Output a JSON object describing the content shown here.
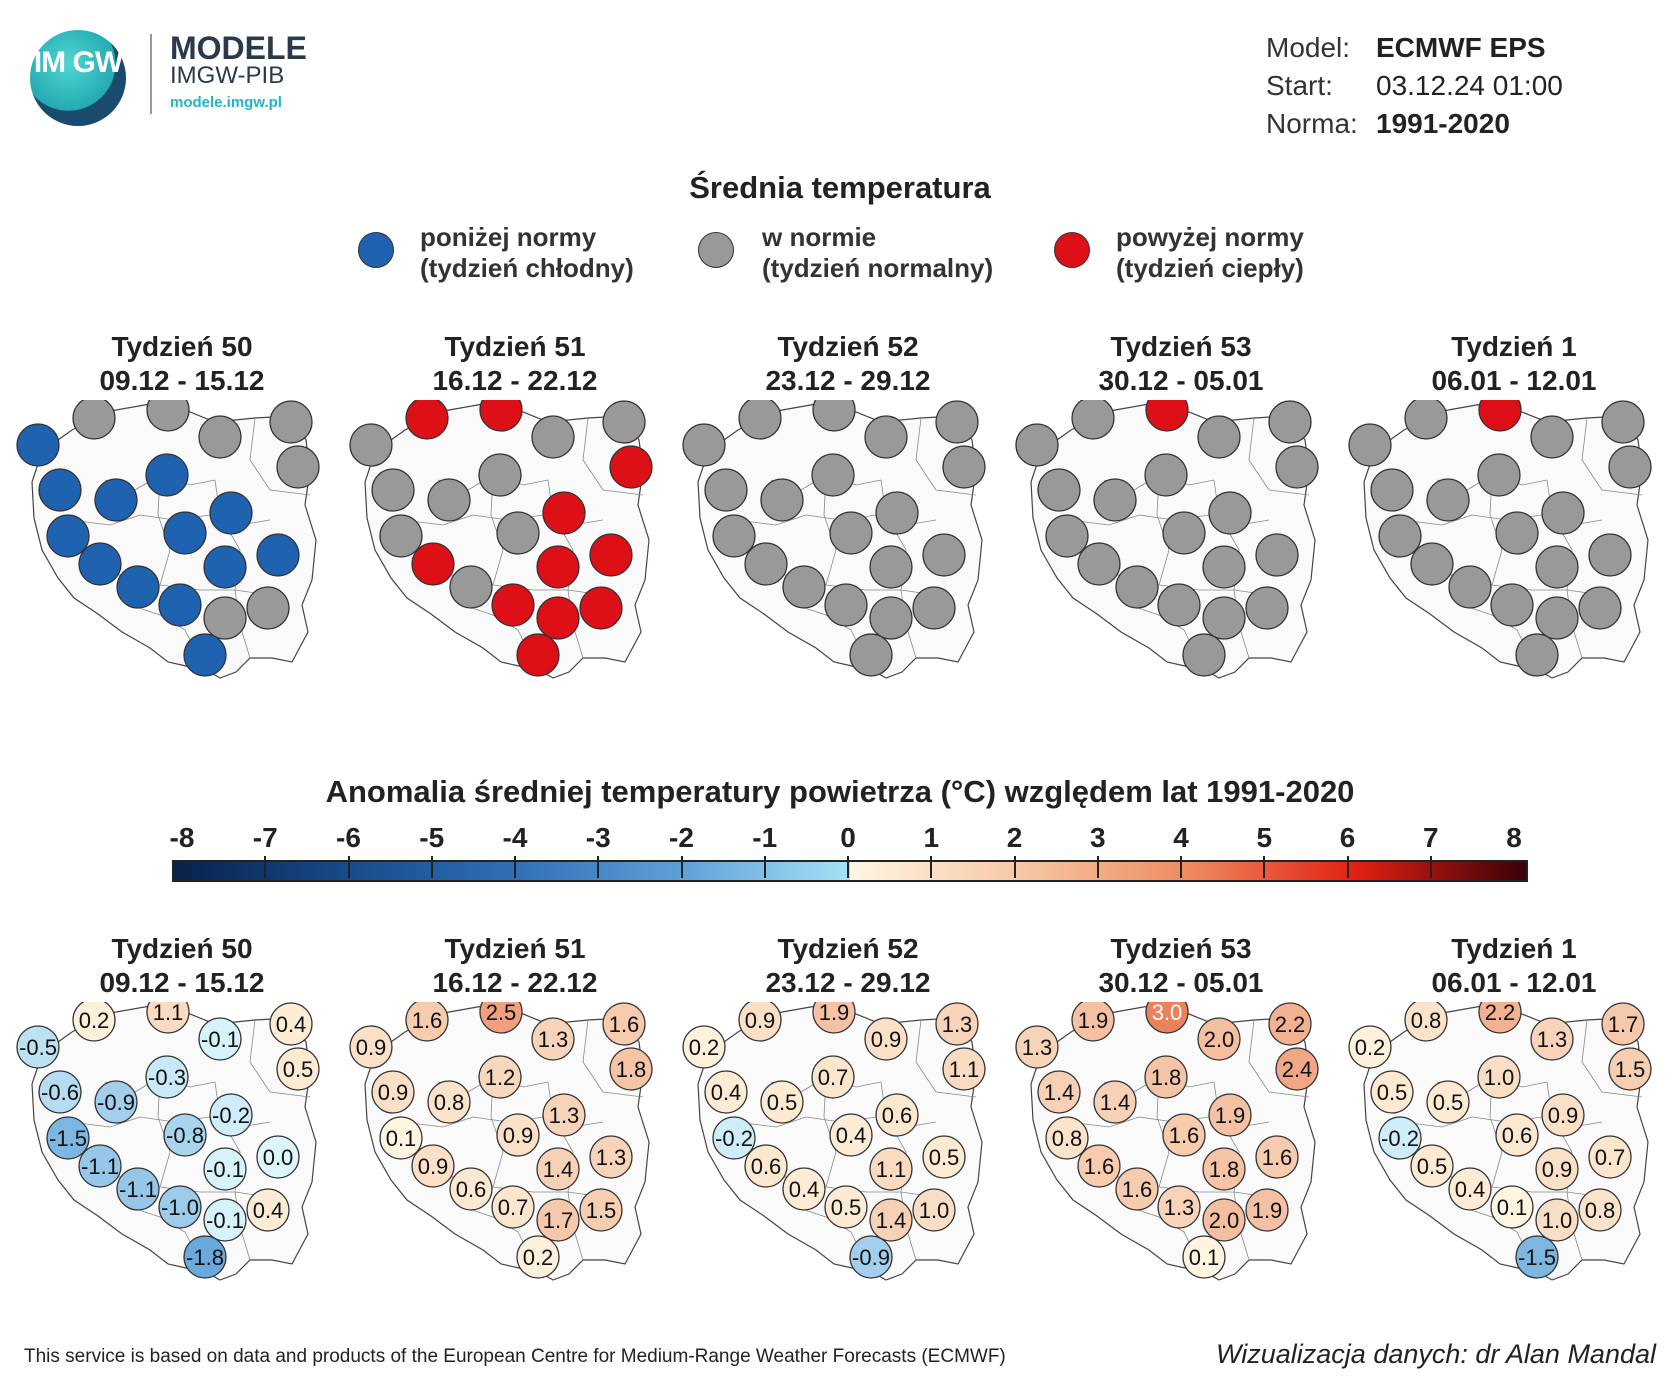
{
  "header": {
    "logo_text": "IM GW",
    "brand_title": "MODELE",
    "brand_subtitle": "IMGW-PIB",
    "brand_url": "modele.imgw.pl",
    "model_label": "Model:",
    "model_value": "ECMWF EPS",
    "start_label": "Start:",
    "start_value": "03.12.24 01:00",
    "norma_label": "Norma:",
    "norma_value": "1991-2020"
  },
  "section1": {
    "title": "Średnia temperatura",
    "legend": [
      {
        "line1": "poniżej normy",
        "line2": "(tydzień chłodny)",
        "color": "#1f63b0"
      },
      {
        "line1": "w normie",
        "line2": "(tydzień normalny)",
        "color": "#999999"
      },
      {
        "line1": "powyżej normy",
        "line2": "(tydzień ciepły)",
        "color": "#dc1016"
      }
    ]
  },
  "section2": {
    "title": "Anomalia średniej temperatury powietrza (°C) względem lat 1991-2020",
    "scale_labels": [
      "-8",
      "-7",
      "-6",
      "-5",
      "-4",
      "-3",
      "-2",
      "-1",
      "0",
      "1",
      "2",
      "3",
      "4",
      "5",
      "6",
      "7",
      "8"
    ]
  },
  "colors": {
    "below": "#1f63b0",
    "normal": "#999999",
    "above": "#dc1016"
  },
  "weeks": [
    {
      "name": "Tydzień 50",
      "dates": "09.12 - 15.12",
      "categories": [
        "below",
        "normal",
        "normal",
        "normal",
        "normal",
        "below",
        "below",
        "below",
        "normal",
        "below",
        "below",
        "below",
        "below",
        "below",
        "below",
        "below",
        "below",
        "normal",
        "normal",
        "below"
      ],
      "anomalies": [
        "-0.5",
        "0.2",
        "1.1",
        "-0.1",
        "0.4",
        "-0.6",
        "-0.9",
        "-0.3",
        "0.5",
        "-1.5",
        "-0.8",
        "-0.2",
        "-1.1",
        "-0.1",
        "0.0",
        "-1.1",
        "-1.0",
        "-0.1",
        "0.4",
        "-1.8"
      ]
    },
    {
      "name": "Tydzień 51",
      "dates": "16.12 - 22.12",
      "categories": [
        "normal",
        "above",
        "above",
        "normal",
        "normal",
        "normal",
        "normal",
        "normal",
        "above",
        "normal",
        "normal",
        "above",
        "above",
        "above",
        "above",
        "normal",
        "above",
        "above",
        "above",
        "above"
      ],
      "anomalies": [
        "0.9",
        "1.6",
        "2.5",
        "1.3",
        "1.6",
        "0.9",
        "0.8",
        "1.2",
        "1.8",
        "0.1",
        "0.9",
        "1.3",
        "0.9",
        "1.4",
        "1.3",
        "0.6",
        "0.7",
        "1.7",
        "1.5",
        "0.2"
      ]
    },
    {
      "name": "Tydzień 52",
      "dates": "23.12 - 29.12",
      "categories": [
        "normal",
        "normal",
        "normal",
        "normal",
        "normal",
        "normal",
        "normal",
        "normal",
        "normal",
        "normal",
        "normal",
        "normal",
        "normal",
        "normal",
        "normal",
        "normal",
        "normal",
        "normal",
        "normal",
        "normal"
      ],
      "anomalies": [
        "0.2",
        "0.9",
        "1.9",
        "0.9",
        "1.3",
        "0.4",
        "0.5",
        "0.7",
        "1.1",
        "-0.2",
        "0.4",
        "0.6",
        "0.6",
        "1.1",
        "0.5",
        "0.4",
        "0.5",
        "1.4",
        "1.0",
        "-0.9"
      ]
    },
    {
      "name": "Tydzień 53",
      "dates": "30.12 - 05.01",
      "categories": [
        "normal",
        "normal",
        "above",
        "normal",
        "normal",
        "normal",
        "normal",
        "normal",
        "normal",
        "normal",
        "normal",
        "normal",
        "normal",
        "normal",
        "normal",
        "normal",
        "normal",
        "normal",
        "normal",
        "normal"
      ],
      "anomalies": [
        "1.3",
        "1.9",
        "3.0",
        "2.0",
        "2.2",
        "1.4",
        "1.4",
        "1.8",
        "2.4",
        "0.8",
        "1.6",
        "1.9",
        "1.6",
        "1.8",
        "1.6",
        "1.6",
        "1.3",
        "2.0",
        "1.9",
        "0.1"
      ]
    },
    {
      "name": "Tydzień 1",
      "dates": "06.01 - 12.01",
      "categories": [
        "normal",
        "normal",
        "above",
        "normal",
        "normal",
        "normal",
        "normal",
        "normal",
        "normal",
        "normal",
        "normal",
        "normal",
        "normal",
        "normal",
        "normal",
        "normal",
        "normal",
        "normal",
        "normal",
        "normal"
      ],
      "anomalies": [
        "0.2",
        "0.8",
        "2.2",
        "1.3",
        "1.7",
        "0.5",
        "0.5",
        "1.0",
        "1.5",
        "-0.2",
        "0.6",
        "0.9",
        "0.5",
        "0.9",
        "0.7",
        "0.4",
        "0.1",
        "1.0",
        "0.8",
        "-1.5"
      ]
    }
  ],
  "footer": {
    "source": "This service is based on data and products of the European Centre for Medium-Range Weather Forecasts (ECMWF)",
    "credit": "Wizualizacja danych: dr Alan Mandal"
  }
}
